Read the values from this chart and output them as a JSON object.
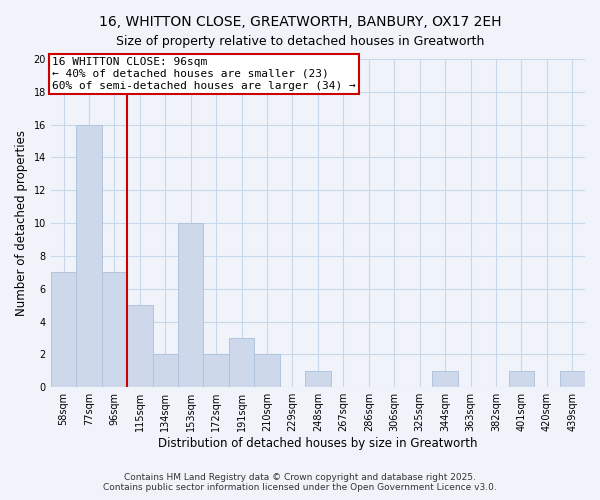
{
  "title": "16, WHITTON CLOSE, GREATWORTH, BANBURY, OX17 2EH",
  "subtitle": "Size of property relative to detached houses in Greatworth",
  "xlabel": "Distribution of detached houses by size in Greatworth",
  "ylabel": "Number of detached properties",
  "bar_labels": [
    "58sqm",
    "77sqm",
    "96sqm",
    "115sqm",
    "134sqm",
    "153sqm",
    "172sqm",
    "191sqm",
    "210sqm",
    "229sqm",
    "248sqm",
    "267sqm",
    "286sqm",
    "306sqm",
    "325sqm",
    "344sqm",
    "363sqm",
    "382sqm",
    "401sqm",
    "420sqm",
    "439sqm"
  ],
  "bar_values": [
    7,
    16,
    7,
    5,
    2,
    10,
    2,
    3,
    2,
    0,
    1,
    0,
    0,
    0,
    0,
    1,
    0,
    0,
    1,
    0,
    1
  ],
  "bar_color": "#cdd9ea",
  "bar_edge_color": "#b0c4de",
  "highlight_index": 2,
  "highlight_line_color": "#cc0000",
  "annotation_line1": "16 WHITTON CLOSE: 96sqm",
  "annotation_line2": "← 40% of detached houses are smaller (23)",
  "annotation_line3": "60% of semi-detached houses are larger (34) →",
  "annotation_box_color": "#ffffff",
  "annotation_box_edge_color": "#cc0000",
  "ylim": [
    0,
    20
  ],
  "yticks": [
    0,
    2,
    4,
    6,
    8,
    10,
    12,
    14,
    16,
    18,
    20
  ],
  "grid_color": "#c8d8ea",
  "background_color": "#f0f4fa",
  "footer_line1": "Contains HM Land Registry data © Crown copyright and database right 2025.",
  "footer_line2": "Contains public sector information licensed under the Open Government Licence v3.0.",
  "title_fontsize": 10,
  "subtitle_fontsize": 9,
  "axis_label_fontsize": 8.5,
  "tick_fontsize": 7,
  "annotation_fontsize": 8,
  "footer_fontsize": 6.5
}
